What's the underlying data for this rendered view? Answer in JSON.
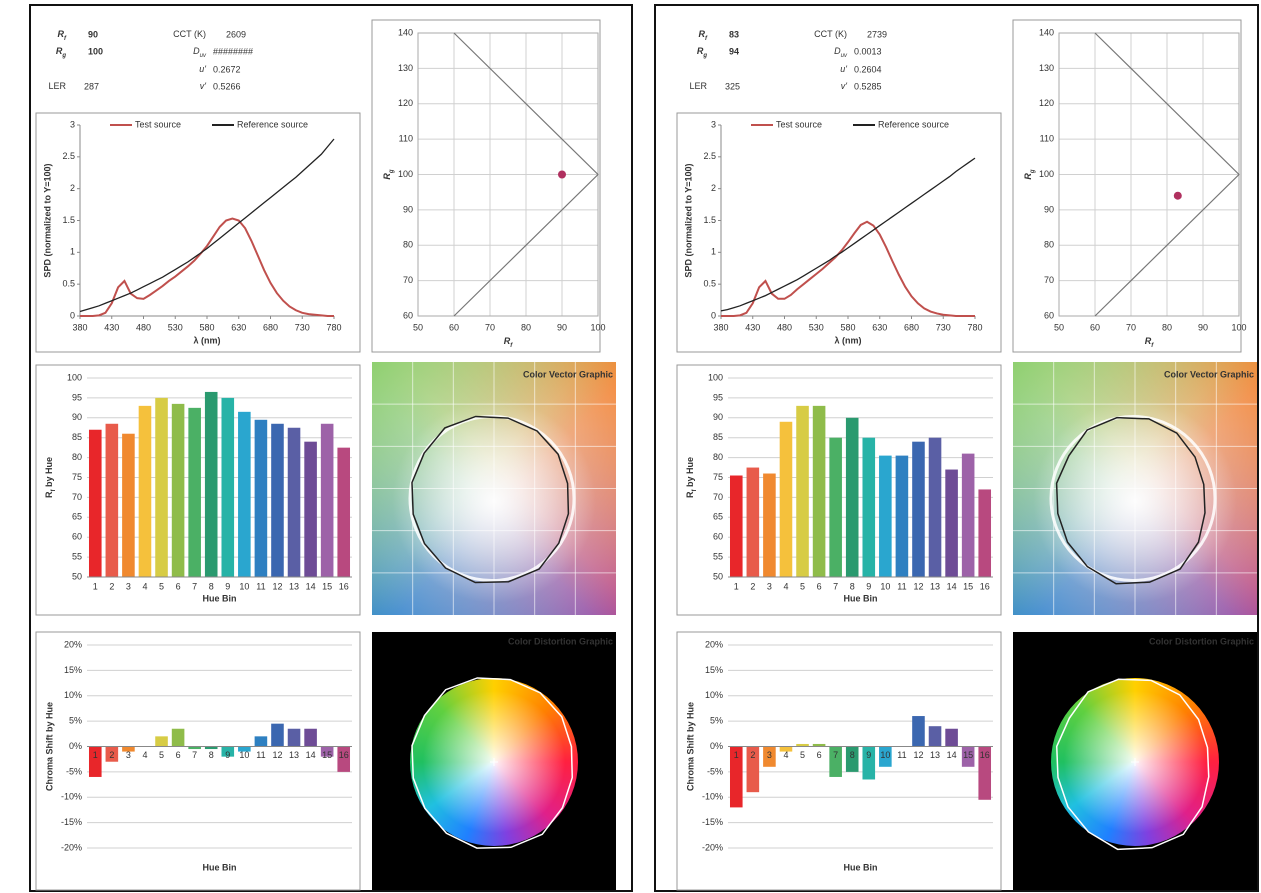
{
  "reports": [
    {
      "metrics": [
        {
          "label": "R",
          "sub": "f",
          "value": 90
        },
        {
          "label": "R",
          "sub": "g",
          "value": 100
        },
        {
          "label": "CCT (K)",
          "value": 2609
        },
        {
          "label": "D",
          "sub": "uv",
          "value": "########"
        },
        {
          "label": "u'",
          "value": 0.2672
        },
        {
          "label": "LER",
          "value": 287
        },
        {
          "label": "v'",
          "value": 0.5266
        }
      ],
      "vector_title": "Color  Vector Graphic",
      "distortion_title": "Color Distortion Graphic"
    },
    {
      "metrics": [
        {
          "label": "R",
          "sub": "f",
          "value": 83
        },
        {
          "label": "R",
          "sub": "g",
          "value": 94
        },
        {
          "label": "CCT (K)",
          "value": 2739
        },
        {
          "label": "D",
          "sub": "uv",
          "value": 0.0013
        },
        {
          "label": "u'",
          "value": 0.2604
        },
        {
          "label": "LER",
          "value": 325
        },
        {
          "label": "v'",
          "value": 0.5285
        }
      ],
      "vector_title": "Color  Vector Graphic",
      "distortion_title": "Color Distortion Graphic"
    }
  ],
  "chart_data": [
    {
      "type": "line",
      "xlabel": "λ (nm)",
      "ylabel": "SPD (normalized to Y=100)",
      "x": [
        380,
        390,
        400,
        410,
        420,
        430,
        440,
        450,
        460,
        470,
        480,
        490,
        500,
        510,
        520,
        530,
        540,
        550,
        560,
        570,
        580,
        590,
        600,
        610,
        620,
        630,
        640,
        650,
        660,
        670,
        680,
        690,
        700,
        710,
        720,
        730,
        740,
        750,
        760,
        770,
        780
      ],
      "xlim": [
        380,
        780
      ],
      "xticks": [
        380,
        430,
        480,
        530,
        580,
        630,
        680,
        730,
        780
      ],
      "ylim": [
        0,
        3
      ],
      "yticks": [
        0,
        0.5,
        1,
        1.5,
        2,
        2.5,
        3
      ],
      "series": [
        {
          "name": "Test source",
          "color": "#c0504d",
          "values": [
            0,
            0,
            0,
            0.01,
            0.05,
            0.2,
            0.45,
            0.55,
            0.35,
            0.28,
            0.27,
            0.33,
            0.4,
            0.47,
            0.55,
            0.62,
            0.7,
            0.78,
            0.87,
            0.98,
            1.1,
            1.25,
            1.4,
            1.5,
            1.53,
            1.5,
            1.38,
            1.18,
            0.95,
            0.72,
            0.52,
            0.36,
            0.24,
            0.15,
            0.09,
            0.05,
            0.03,
            0.02,
            0.01,
            0,
            0
          ]
        },
        {
          "name": "Reference source",
          "color": "#222222",
          "values": [
            0.07,
            0.1,
            0.13,
            0.16,
            0.2,
            0.24,
            0.28,
            0.32,
            0.36,
            0.41,
            0.46,
            0.51,
            0.56,
            0.61,
            0.67,
            0.73,
            0.79,
            0.85,
            0.92,
            0.99,
            1.06,
            1.14,
            1.22,
            1.3,
            1.38,
            1.46,
            1.54,
            1.62,
            1.7,
            1.78,
            1.86,
            1.94,
            2.02,
            2.1,
            2.18,
            2.27,
            2.36,
            2.45,
            2.54,
            2.66,
            2.78
          ]
        }
      ]
    },
    {
      "type": "scatter",
      "xlabel": {
        "text": "R",
        "sub": "f"
      },
      "ylabel": {
        "text": "R",
        "sub": "g"
      },
      "xlim": [
        50,
        100
      ],
      "xticks": [
        50,
        60,
        70,
        80,
        90,
        100
      ],
      "ylim": [
        60,
        140
      ],
      "yticks": [
        60,
        70,
        80,
        90,
        100,
        110,
        120,
        130,
        140
      ],
      "x": [
        90
      ],
      "y": [
        100
      ],
      "color": "#b0305f",
      "boundary_x": [
        60,
        100,
        60
      ],
      "boundary_y": [
        140,
        100,
        60
      ],
      "grid": true
    },
    {
      "type": "bar",
      "categories": [
        "1",
        "2",
        "3",
        "4",
        "5",
        "6",
        "7",
        "8",
        "9",
        "10",
        "11",
        "12",
        "13",
        "14",
        "15",
        "16"
      ],
      "values": [
        87,
        88.5,
        86,
        93,
        95,
        93.5,
        92.5,
        96.5,
        95,
        91.5,
        89.5,
        88.5,
        87.5,
        84,
        88.5,
        82.5
      ],
      "colors": [
        "#e8262a",
        "#e85b4b",
        "#f0892f",
        "#f5c13c",
        "#d7cc45",
        "#8fbc4a",
        "#4bb065",
        "#2a9a6f",
        "#27b3a7",
        "#2aa6cf",
        "#2e80c1",
        "#3b67b0",
        "#5a5fa5",
        "#6e4c96",
        "#9d62a8",
        "#b8497f"
      ],
      "xlabel": "Hue Bin",
      "ylabel": {
        "text": "R",
        "sub": "f",
        "rest": " by Hue"
      },
      "ylim": [
        50,
        100
      ],
      "yticks": [
        50,
        55,
        60,
        65,
        70,
        75,
        80,
        85,
        90,
        95,
        100
      ],
      "grid": true
    },
    {
      "type": "bar",
      "categories": [
        "1",
        "2",
        "3",
        "4",
        "5",
        "6",
        "7",
        "8",
        "9",
        "10",
        "11",
        "12",
        "13",
        "14",
        "15",
        "16"
      ],
      "values": [
        -6,
        -3,
        -1,
        0,
        2,
        3.5,
        -0.5,
        -0.5,
        -2,
        -1,
        2,
        4.5,
        3.5,
        3.5,
        -2,
        -5
      ],
      "colors": [
        "#e8262a",
        "#e85b4b",
        "#f0892f",
        "#f5c13c",
        "#d7cc45",
        "#8fbc4a",
        "#4bb065",
        "#2a9a6f",
        "#27b3a7",
        "#2aa6cf",
        "#2e80c1",
        "#3b67b0",
        "#5a5fa5",
        "#6e4c96",
        "#9d62a8",
        "#b8497f"
      ],
      "xlabel": "Hue Bin",
      "ylabel": "Chroma Shift by Hue",
      "ylim": [
        -20,
        20
      ],
      "yticks": [
        {
          "value": -20,
          "label": "-20%"
        },
        {
          "value": -15,
          "label": "-15%"
        },
        {
          "value": -10,
          "label": "-10%"
        },
        {
          "value": -5,
          "label": "-5%"
        },
        {
          "value": 0,
          "label": "0%"
        },
        {
          "value": 5,
          "label": "5%"
        },
        {
          "value": 10,
          "label": "10%"
        },
        {
          "value": 15,
          "label": "15%"
        },
        {
          "value": 20,
          "label": "20%"
        }
      ],
      "grid": true,
      "category_axis_at_zero": true
    },
    {
      "type": "line",
      "xlabel": "λ (nm)",
      "ylabel": "SPD (normalized to Y=100)",
      "x": [
        380,
        390,
        400,
        410,
        420,
        430,
        440,
        450,
        460,
        470,
        480,
        490,
        500,
        510,
        520,
        530,
        540,
        550,
        560,
        570,
        580,
        590,
        600,
        610,
        620,
        630,
        640,
        650,
        660,
        670,
        680,
        690,
        700,
        710,
        720,
        730,
        740,
        750,
        760,
        770,
        780
      ],
      "xlim": [
        380,
        780
      ],
      "xticks": [
        380,
        430,
        480,
        530,
        580,
        630,
        680,
        730,
        780
      ],
      "ylim": [
        0,
        3
      ],
      "yticks": [
        0,
        0.5,
        1,
        1.5,
        2,
        2.5,
        3
      ],
      "series": [
        {
          "name": "Test source",
          "color": "#c0504d",
          "values": [
            0,
            0,
            0,
            0.01,
            0.05,
            0.2,
            0.45,
            0.55,
            0.35,
            0.27,
            0.27,
            0.33,
            0.42,
            0.5,
            0.58,
            0.66,
            0.74,
            0.83,
            0.92,
            1.03,
            1.16,
            1.3,
            1.43,
            1.48,
            1.42,
            1.28,
            1.08,
            0.86,
            0.65,
            0.46,
            0.31,
            0.2,
            0.12,
            0.07,
            0.04,
            0.02,
            0.01,
            0,
            0,
            0,
            0
          ]
        },
        {
          "name": "Reference source",
          "color": "#222222",
          "values": [
            0.08,
            0.1,
            0.13,
            0.16,
            0.2,
            0.24,
            0.28,
            0.32,
            0.37,
            0.42,
            0.47,
            0.52,
            0.57,
            0.63,
            0.69,
            0.75,
            0.81,
            0.87,
            0.94,
            1.0,
            1.07,
            1.14,
            1.21,
            1.28,
            1.35,
            1.42,
            1.49,
            1.56,
            1.63,
            1.7,
            1.77,
            1.84,
            1.91,
            1.98,
            2.05,
            2.12,
            2.19,
            2.27,
            2.34,
            2.41,
            2.48
          ]
        }
      ]
    },
    {
      "type": "scatter",
      "xlabel": {
        "text": "R",
        "sub": "f"
      },
      "ylabel": {
        "text": "R",
        "sub": "g"
      },
      "xlim": [
        50,
        100
      ],
      "xticks": [
        50,
        60,
        70,
        80,
        90,
        100
      ],
      "ylim": [
        60,
        140
      ],
      "yticks": [
        60,
        70,
        80,
        90,
        100,
        110,
        120,
        130,
        140
      ],
      "x": [
        83
      ],
      "y": [
        94
      ],
      "color": "#b0305f",
      "boundary_x": [
        60,
        100,
        60
      ],
      "boundary_y": [
        140,
        100,
        60
      ],
      "grid": true
    },
    {
      "type": "bar",
      "categories": [
        "1",
        "2",
        "3",
        "4",
        "5",
        "6",
        "7",
        "8",
        "9",
        "10",
        "11",
        "12",
        "13",
        "14",
        "15",
        "16"
      ],
      "values": [
        75.5,
        77.5,
        76,
        89,
        93,
        93,
        85,
        90,
        85,
        80.5,
        80.5,
        84,
        85,
        77,
        81,
        72
      ],
      "colors": [
        "#e8262a",
        "#e85b4b",
        "#f0892f",
        "#f5c13c",
        "#d7cc45",
        "#8fbc4a",
        "#4bb065",
        "#2a9a6f",
        "#27b3a7",
        "#2aa6cf",
        "#2e80c1",
        "#3b67b0",
        "#5a5fa5",
        "#6e4c96",
        "#9d62a8",
        "#b8497f"
      ],
      "xlabel": "Hue Bin",
      "ylabel": {
        "text": "R",
        "sub": "f",
        "rest": " by Hue"
      },
      "ylim": [
        50,
        100
      ],
      "yticks": [
        50,
        55,
        60,
        65,
        70,
        75,
        80,
        85,
        90,
        95,
        100
      ],
      "grid": true
    },
    {
      "type": "bar",
      "categories": [
        "1",
        "2",
        "3",
        "4",
        "5",
        "6",
        "7",
        "8",
        "9",
        "10",
        "11",
        "12",
        "13",
        "14",
        "15",
        "16"
      ],
      "values": [
        -12,
        -9,
        -4,
        -1,
        0.5,
        0.5,
        -6,
        -5,
        -6.5,
        -4,
        0,
        6,
        4,
        3.5,
        -4,
        -10.5
      ],
      "colors": [
        "#e8262a",
        "#e85b4b",
        "#f0892f",
        "#f5c13c",
        "#d7cc45",
        "#8fbc4a",
        "#4bb065",
        "#2a9a6f",
        "#27b3a7",
        "#2aa6cf",
        "#2e80c1",
        "#3b67b0",
        "#5a5fa5",
        "#6e4c96",
        "#9d62a8",
        "#b8497f"
      ],
      "xlabel": "Hue Bin",
      "ylabel": "Chroma Shift by Hue",
      "ylim": [
        -20,
        20
      ],
      "yticks": [
        {
          "value": -20,
          "label": "-20%"
        },
        {
          "value": -15,
          "label": "-15%"
        },
        {
          "value": -10,
          "label": "-10%"
        },
        {
          "value": -5,
          "label": "-5%"
        },
        {
          "value": 0,
          "label": "0%"
        },
        {
          "value": 5,
          "label": "5%"
        },
        {
          "value": 10,
          "label": "10%"
        },
        {
          "value": 15,
          "label": "15%"
        },
        {
          "value": 20,
          "label": "20%"
        }
      ],
      "grid": true,
      "category_axis_at_zero": true
    }
  ]
}
